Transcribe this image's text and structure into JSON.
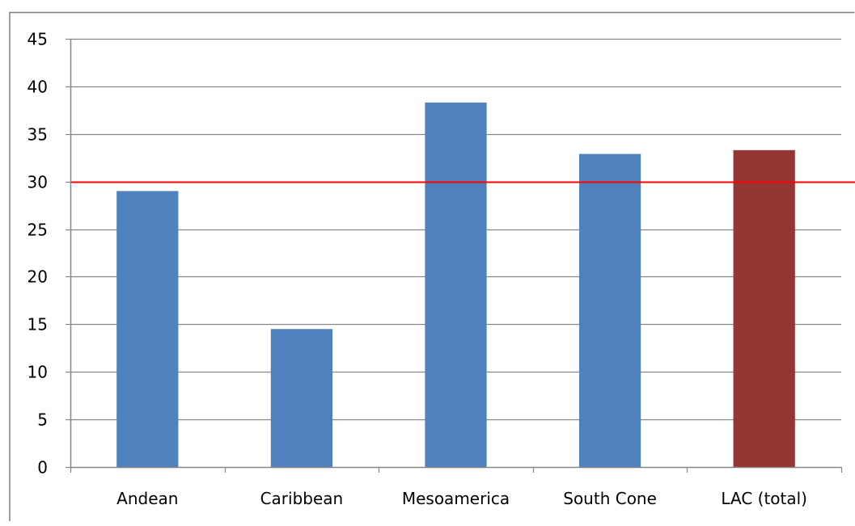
{
  "chart_data": {
    "type": "bar",
    "title": "",
    "xlabel": "",
    "ylabel": "",
    "categories": [
      "Andean",
      "Caribbean",
      "Mesoamerica",
      "South Cone",
      "LAC (total)"
    ],
    "values": [
      29,
      14.5,
      38.3,
      32.9,
      33.3
    ],
    "bar_colors": [
      "#4F81BD",
      "#4F81BD",
      "#4F81BD",
      "#4F81BD",
      "#943634"
    ],
    "ylim": [
      0,
      45
    ],
    "yticks": [
      0,
      5,
      10,
      15,
      20,
      25,
      30,
      35,
      40,
      45
    ],
    "grid": true,
    "legend": "none",
    "reference_line": {
      "value": 30,
      "color": "#FF0000"
    }
  }
}
